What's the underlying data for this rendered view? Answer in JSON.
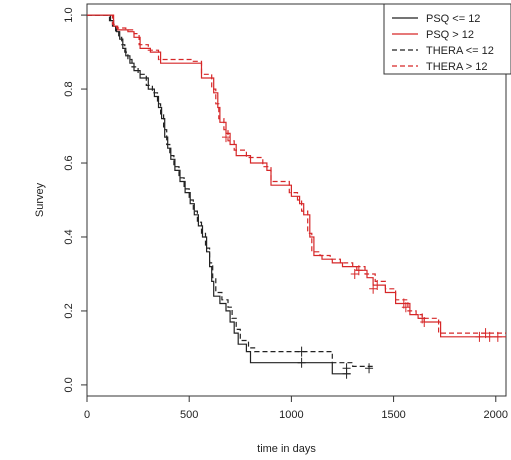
{
  "chart_data": {
    "type": "line",
    "xlabel": "time in days",
    "ylabel": "Survey",
    "xlim": [
      0,
      2050
    ],
    "ylim": [
      -0.03,
      1.03
    ],
    "x_ticks": [
      0,
      500,
      1000,
      1500,
      2000
    ],
    "y_ticks": [
      0.0,
      0.2,
      0.4,
      0.6,
      0.8,
      1.0
    ],
    "x_tick_labels": [
      "0",
      "500",
      "1000",
      "1500",
      "2000"
    ],
    "y_tick_labels": [
      "0.0",
      "0.2",
      "0.4",
      "0.6",
      "0.8",
      "1.0"
    ],
    "grid": false,
    "legend_position": "top-right",
    "series": [
      {
        "name": "PSQ <= 12",
        "color": "#222222",
        "dash": "solid",
        "points": [
          [
            0,
            1.0
          ],
          [
            100,
            1.0
          ],
          [
            115,
            0.985
          ],
          [
            130,
            0.97
          ],
          [
            145,
            0.955
          ],
          [
            160,
            0.935
          ],
          [
            175,
            0.91
          ],
          [
            190,
            0.89
          ],
          [
            210,
            0.87
          ],
          [
            230,
            0.85
          ],
          [
            260,
            0.83
          ],
          [
            300,
            0.8
          ],
          [
            330,
            0.78
          ],
          [
            350,
            0.75
          ],
          [
            365,
            0.72
          ],
          [
            380,
            0.67
          ],
          [
            395,
            0.64
          ],
          [
            410,
            0.61
          ],
          [
            430,
            0.58
          ],
          [
            455,
            0.55
          ],
          [
            480,
            0.52
          ],
          [
            505,
            0.49
          ],
          [
            525,
            0.46
          ],
          [
            545,
            0.43
          ],
          [
            565,
            0.4
          ],
          [
            585,
            0.36
          ],
          [
            600,
            0.32
          ],
          [
            610,
            0.28
          ],
          [
            620,
            0.24
          ],
          [
            650,
            0.22
          ],
          [
            680,
            0.2
          ],
          [
            700,
            0.17
          ],
          [
            720,
            0.14
          ],
          [
            740,
            0.11
          ],
          [
            780,
            0.09
          ],
          [
            800,
            0.06
          ],
          [
            1180,
            0.06
          ],
          [
            1200,
            0.03
          ],
          [
            1290,
            0.03
          ]
        ],
        "censor": [
          [
            1050,
            0.06
          ],
          [
            1270,
            0.03
          ]
        ]
      },
      {
        "name": "PSQ > 12",
        "color": "#d62728",
        "dash": "solid",
        "points": [
          [
            0,
            1.0
          ],
          [
            120,
            1.0
          ],
          [
            130,
            0.97
          ],
          [
            150,
            0.96
          ],
          [
            200,
            0.955
          ],
          [
            230,
            0.94
          ],
          [
            260,
            0.91
          ],
          [
            310,
            0.9
          ],
          [
            360,
            0.87
          ],
          [
            510,
            0.87
          ],
          [
            560,
            0.83
          ],
          [
            620,
            0.79
          ],
          [
            640,
            0.75
          ],
          [
            650,
            0.71
          ],
          [
            680,
            0.68
          ],
          [
            700,
            0.65
          ],
          [
            730,
            0.62
          ],
          [
            800,
            0.6
          ],
          [
            880,
            0.58
          ],
          [
            900,
            0.54
          ],
          [
            1000,
            0.51
          ],
          [
            1040,
            0.49
          ],
          [
            1060,
            0.46
          ],
          [
            1090,
            0.4
          ],
          [
            1110,
            0.35
          ],
          [
            1150,
            0.34
          ],
          [
            1200,
            0.33
          ],
          [
            1250,
            0.32
          ],
          [
            1320,
            0.31
          ],
          [
            1370,
            0.29
          ],
          [
            1400,
            0.27
          ],
          [
            1460,
            0.25
          ],
          [
            1510,
            0.22
          ],
          [
            1580,
            0.19
          ],
          [
            1620,
            0.18
          ],
          [
            1650,
            0.17
          ],
          [
            1730,
            0.13
          ],
          [
            2050,
            0.13
          ]
        ],
        "censor": [
          [
            1310,
            0.3
          ],
          [
            1400,
            0.26
          ],
          [
            1560,
            0.21
          ],
          [
            1650,
            0.17
          ],
          [
            1920,
            0.13
          ],
          [
            1970,
            0.13
          ],
          [
            2010,
            0.13
          ]
        ]
      },
      {
        "name": "THERA <= 12",
        "color": "#222222",
        "dash": "dashed",
        "points": [
          [
            0,
            1.0
          ],
          [
            95,
            1.0
          ],
          [
            110,
            0.985
          ],
          [
            125,
            0.97
          ],
          [
            140,
            0.955
          ],
          [
            155,
            0.94
          ],
          [
            170,
            0.92
          ],
          [
            185,
            0.9
          ],
          [
            200,
            0.88
          ],
          [
            220,
            0.86
          ],
          [
            250,
            0.84
          ],
          [
            290,
            0.81
          ],
          [
            320,
            0.79
          ],
          [
            345,
            0.76
          ],
          [
            360,
            0.73
          ],
          [
            375,
            0.69
          ],
          [
            390,
            0.65
          ],
          [
            405,
            0.62
          ],
          [
            425,
            0.59
          ],
          [
            450,
            0.56
          ],
          [
            475,
            0.53
          ],
          [
            500,
            0.5
          ],
          [
            520,
            0.47
          ],
          [
            540,
            0.44
          ],
          [
            560,
            0.41
          ],
          [
            580,
            0.37
          ],
          [
            600,
            0.33
          ],
          [
            615,
            0.29
          ],
          [
            630,
            0.25
          ],
          [
            660,
            0.23
          ],
          [
            690,
            0.21
          ],
          [
            710,
            0.18
          ],
          [
            730,
            0.15
          ],
          [
            750,
            0.12
          ],
          [
            790,
            0.1
          ],
          [
            820,
            0.09
          ],
          [
            1050,
            0.09
          ],
          [
            1200,
            0.06
          ],
          [
            1300,
            0.05
          ],
          [
            1400,
            0.045
          ]
        ],
        "censor": [
          [
            1050,
            0.09
          ],
          [
            1270,
            0.045
          ],
          [
            1380,
            0.045
          ]
        ]
      },
      {
        "name": "THERA > 12",
        "color": "#d62728",
        "dash": "dashed",
        "points": [
          [
            0,
            1.0
          ],
          [
            110,
            1.0
          ],
          [
            125,
            0.975
          ],
          [
            145,
            0.965
          ],
          [
            190,
            0.96
          ],
          [
            230,
            0.95
          ],
          [
            255,
            0.92
          ],
          [
            300,
            0.905
          ],
          [
            350,
            0.88
          ],
          [
            520,
            0.875
          ],
          [
            560,
            0.84
          ],
          [
            610,
            0.8
          ],
          [
            630,
            0.76
          ],
          [
            645,
            0.72
          ],
          [
            670,
            0.69
          ],
          [
            690,
            0.66
          ],
          [
            720,
            0.635
          ],
          [
            780,
            0.615
          ],
          [
            860,
            0.59
          ],
          [
            900,
            0.55
          ],
          [
            990,
            0.52
          ],
          [
            1030,
            0.5
          ],
          [
            1050,
            0.47
          ],
          [
            1080,
            0.41
          ],
          [
            1100,
            0.36
          ],
          [
            1140,
            0.35
          ],
          [
            1190,
            0.34
          ],
          [
            1240,
            0.33
          ],
          [
            1300,
            0.32
          ],
          [
            1360,
            0.3
          ],
          [
            1410,
            0.28
          ],
          [
            1460,
            0.26
          ],
          [
            1510,
            0.23
          ],
          [
            1570,
            0.2
          ],
          [
            1610,
            0.19
          ],
          [
            1640,
            0.18
          ],
          [
            1720,
            0.14
          ],
          [
            2050,
            0.14
          ]
        ],
        "censor": [
          [
            680,
            0.67
          ],
          [
            1330,
            0.31
          ],
          [
            1420,
            0.27
          ],
          [
            1550,
            0.22
          ],
          [
            1640,
            0.18
          ],
          [
            1950,
            0.14
          ]
        ]
      }
    ]
  }
}
